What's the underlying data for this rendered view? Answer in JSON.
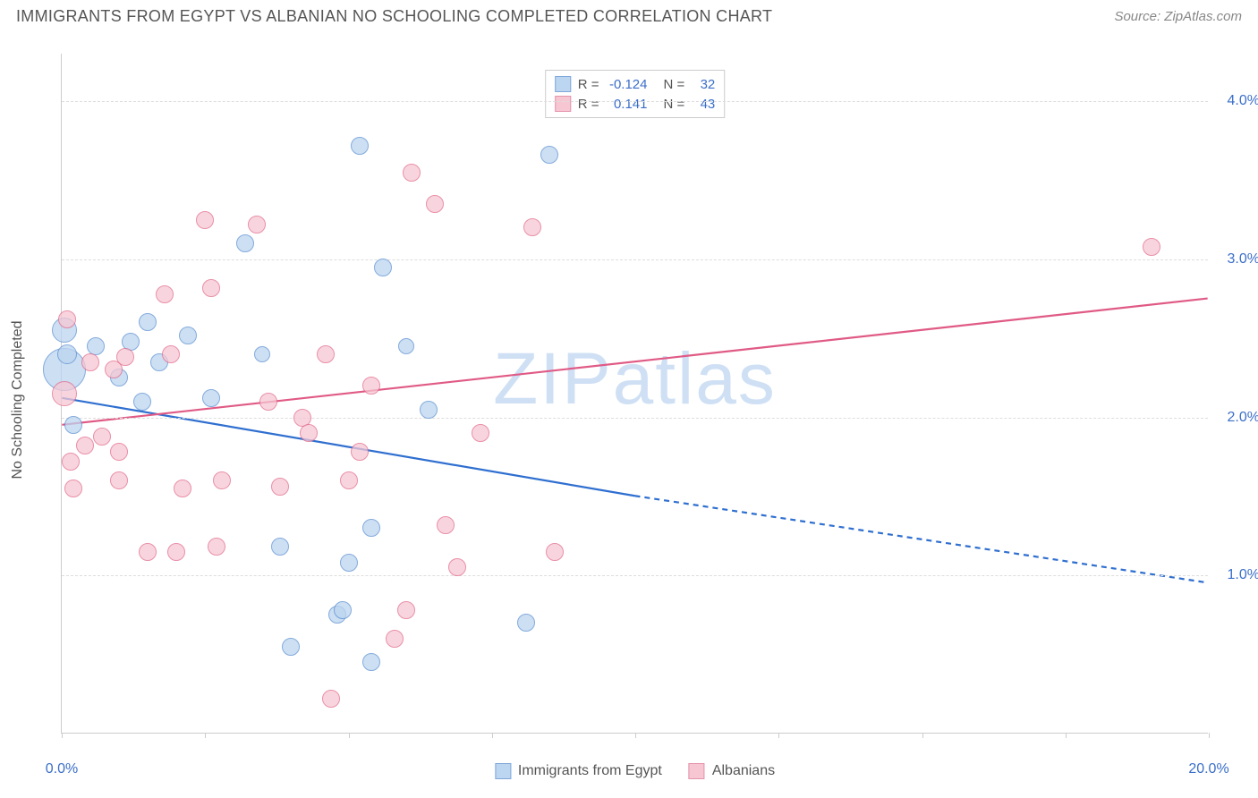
{
  "header": {
    "title": "IMMIGRANTS FROM EGYPT VS ALBANIAN NO SCHOOLING COMPLETED CORRELATION CHART",
    "source": "Source: ZipAtlas.com"
  },
  "watermark": "ZIPatlas",
  "chart": {
    "type": "scatter",
    "background_color": "#ffffff",
    "grid_color": "#dddddd",
    "axis_color": "#cccccc",
    "y_axis_label": "No Schooling Completed",
    "x_range": [
      0,
      20
    ],
    "y_range": [
      0,
      4.3
    ],
    "x_ticks": [
      0,
      2.5,
      5,
      7.5,
      10,
      12.5,
      15,
      17.5,
      20
    ],
    "x_tick_labels_shown": {
      "0": "0.0%",
      "20": "20.0%"
    },
    "y_ticks": [
      1.0,
      2.0,
      3.0,
      4.0
    ],
    "y_tick_labels": [
      "1.0%",
      "2.0%",
      "3.0%",
      "4.0%"
    ],
    "tick_label_color": "#3b6fc9",
    "axis_label_color": "#555555",
    "label_fontsize": 16,
    "title_fontsize": 18
  },
  "legend_top": {
    "rows": [
      {
        "swatch_fill": "#bcd5f0",
        "swatch_border": "#7fa8d9",
        "r_label": "R =",
        "r_value": "-0.124",
        "n_label": "N =",
        "n_value": "32"
      },
      {
        "swatch_fill": "#f6c7d3",
        "swatch_border": "#e593ab",
        "r_label": "R =",
        "r_value": "0.141",
        "n_label": "N =",
        "n_value": "43"
      }
    ]
  },
  "legend_bottom": {
    "items": [
      {
        "swatch_fill": "#bcd5f0",
        "swatch_border": "#7fa8d9",
        "label": "Immigrants from Egypt"
      },
      {
        "swatch_fill": "#f6c7d3",
        "swatch_border": "#e593ab",
        "label": "Albanians"
      }
    ]
  },
  "series": [
    {
      "name": "Immigrants from Egypt",
      "fill": "#bcd5f0",
      "stroke": "#5b8fd1",
      "opacity": 0.75,
      "marker_base_radius": 9,
      "trend": {
        "x1": 0,
        "y1": 2.12,
        "x2": 10,
        "y2": 1.5,
        "color": "#2f6fd0",
        "width": 2.2,
        "dash_x2": 20,
        "dash_y2": 0.95
      },
      "points": [
        {
          "x": 0.05,
          "y": 2.55,
          "r": 14
        },
        {
          "x": 0.05,
          "y": 2.3,
          "r": 24
        },
        {
          "x": 0.1,
          "y": 2.4,
          "r": 11
        },
        {
          "x": 0.2,
          "y": 1.95,
          "r": 10
        },
        {
          "x": 0.6,
          "y": 2.45,
          "r": 10
        },
        {
          "x": 1.0,
          "y": 2.25,
          "r": 10
        },
        {
          "x": 1.2,
          "y": 2.48,
          "r": 10
        },
        {
          "x": 1.4,
          "y": 2.1,
          "r": 10
        },
        {
          "x": 1.5,
          "y": 2.6,
          "r": 10
        },
        {
          "x": 1.7,
          "y": 2.35,
          "r": 10
        },
        {
          "x": 2.2,
          "y": 2.52,
          "r": 10
        },
        {
          "x": 2.6,
          "y": 2.12,
          "r": 10
        },
        {
          "x": 3.2,
          "y": 3.1,
          "r": 10
        },
        {
          "x": 3.5,
          "y": 2.4,
          "r": 9
        },
        {
          "x": 3.8,
          "y": 1.18,
          "r": 10
        },
        {
          "x": 4.0,
          "y": 0.55,
          "r": 10
        },
        {
          "x": 4.8,
          "y": 0.75,
          "r": 10
        },
        {
          "x": 4.9,
          "y": 0.78,
          "r": 10
        },
        {
          "x": 5.0,
          "y": 1.08,
          "r": 10
        },
        {
          "x": 5.2,
          "y": 3.72,
          "r": 10
        },
        {
          "x": 5.4,
          "y": 1.3,
          "r": 10
        },
        {
          "x": 5.4,
          "y": 0.45,
          "r": 10
        },
        {
          "x": 5.6,
          "y": 2.95,
          "r": 10
        },
        {
          "x": 6.0,
          "y": 2.45,
          "r": 9
        },
        {
          "x": 6.4,
          "y": 2.05,
          "r": 10
        },
        {
          "x": 8.1,
          "y": 0.7,
          "r": 10
        },
        {
          "x": 8.5,
          "y": 3.66,
          "r": 10
        }
      ]
    },
    {
      "name": "Albanians",
      "fill": "#f6c7d3",
      "stroke": "#e26a8c",
      "opacity": 0.75,
      "marker_base_radius": 9,
      "trend": {
        "x1": 0,
        "y1": 1.95,
        "x2": 20,
        "y2": 2.75,
        "color": "#e05a85",
        "width": 2.2
      },
      "points": [
        {
          "x": 0.05,
          "y": 2.15,
          "r": 14
        },
        {
          "x": 0.1,
          "y": 2.62,
          "r": 10
        },
        {
          "x": 0.15,
          "y": 1.72,
          "r": 10
        },
        {
          "x": 0.2,
          "y": 1.55,
          "r": 10
        },
        {
          "x": 0.4,
          "y": 1.82,
          "r": 10
        },
        {
          "x": 0.5,
          "y": 2.35,
          "r": 10
        },
        {
          "x": 0.7,
          "y": 1.88,
          "r": 10
        },
        {
          "x": 0.9,
          "y": 2.3,
          "r": 10
        },
        {
          "x": 1.0,
          "y": 1.78,
          "r": 10
        },
        {
          "x": 1.0,
          "y": 1.6,
          "r": 10
        },
        {
          "x": 1.1,
          "y": 2.38,
          "r": 10
        },
        {
          "x": 1.5,
          "y": 1.15,
          "r": 10
        },
        {
          "x": 1.8,
          "y": 2.78,
          "r": 10
        },
        {
          "x": 1.9,
          "y": 2.4,
          "r": 10
        },
        {
          "x": 2.0,
          "y": 1.15,
          "r": 10
        },
        {
          "x": 2.1,
          "y": 1.55,
          "r": 10
        },
        {
          "x": 2.5,
          "y": 3.25,
          "r": 10
        },
        {
          "x": 2.6,
          "y": 2.82,
          "r": 10
        },
        {
          "x": 2.7,
          "y": 1.18,
          "r": 10
        },
        {
          "x": 2.8,
          "y": 1.6,
          "r": 10
        },
        {
          "x": 3.4,
          "y": 3.22,
          "r": 10
        },
        {
          "x": 3.6,
          "y": 2.1,
          "r": 10
        },
        {
          "x": 3.8,
          "y": 1.56,
          "r": 10
        },
        {
          "x": 4.2,
          "y": 2.0,
          "r": 10
        },
        {
          "x": 4.3,
          "y": 1.9,
          "r": 10
        },
        {
          "x": 4.6,
          "y": 2.4,
          "r": 10
        },
        {
          "x": 4.7,
          "y": 0.22,
          "r": 10
        },
        {
          "x": 5.0,
          "y": 1.6,
          "r": 10
        },
        {
          "x": 5.2,
          "y": 1.78,
          "r": 10
        },
        {
          "x": 5.4,
          "y": 2.2,
          "r": 10
        },
        {
          "x": 5.8,
          "y": 0.6,
          "r": 10
        },
        {
          "x": 6.0,
          "y": 0.78,
          "r": 10
        },
        {
          "x": 6.1,
          "y": 3.55,
          "r": 10
        },
        {
          "x": 6.5,
          "y": 3.35,
          "r": 10
        },
        {
          "x": 6.7,
          "y": 1.32,
          "r": 10
        },
        {
          "x": 6.9,
          "y": 1.05,
          "r": 10
        },
        {
          "x": 7.3,
          "y": 1.9,
          "r": 10
        },
        {
          "x": 8.2,
          "y": 3.2,
          "r": 10
        },
        {
          "x": 8.6,
          "y": 1.15,
          "r": 10
        },
        {
          "x": 19.0,
          "y": 3.08,
          "r": 10
        }
      ]
    }
  ]
}
